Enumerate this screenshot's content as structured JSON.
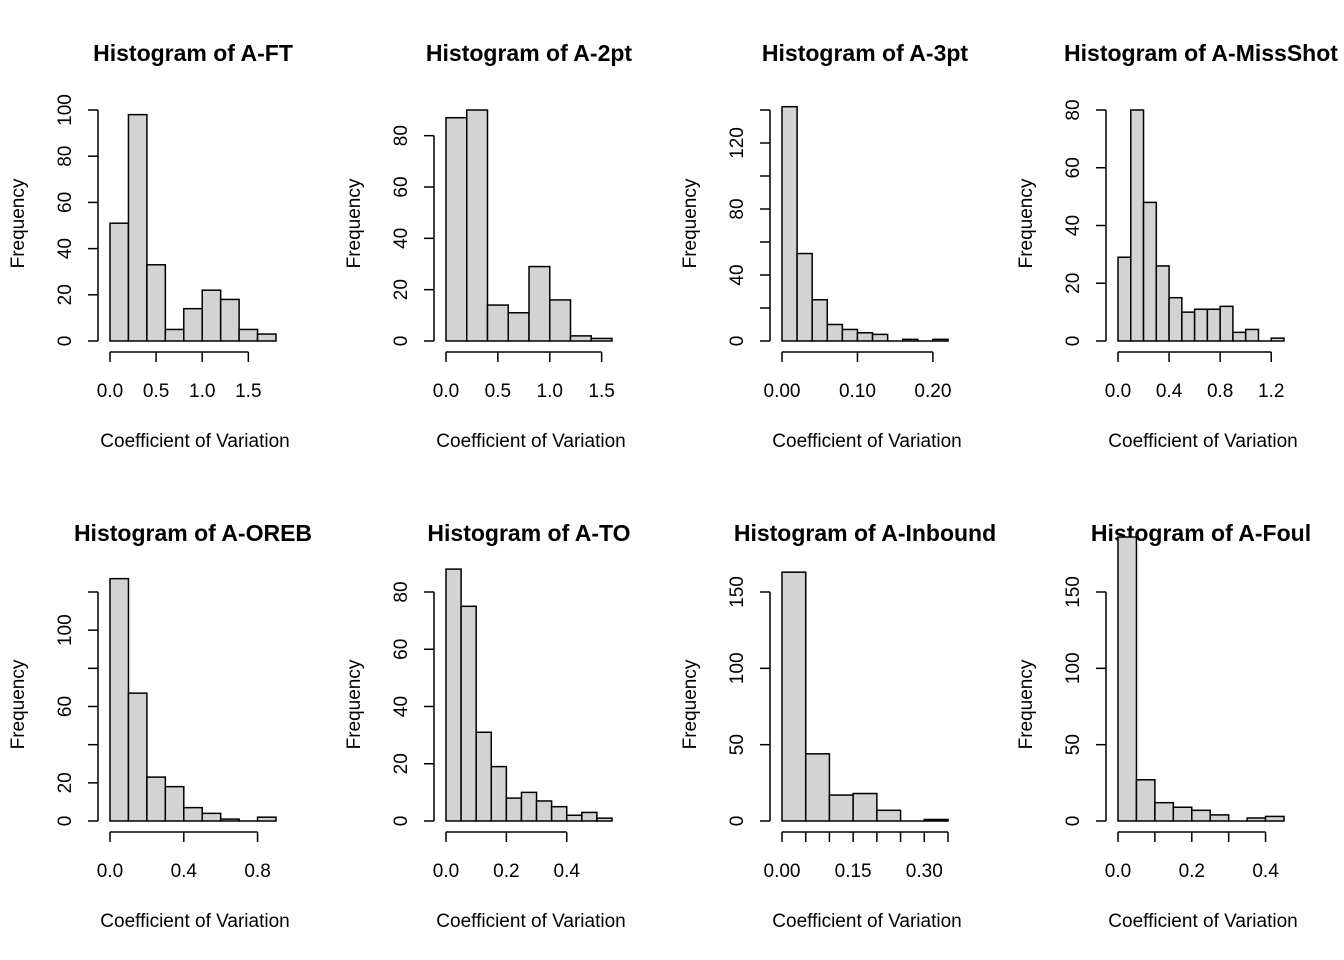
{
  "chart_data": [
    {
      "type": "bar",
      "title": "Histogram of A-FT",
      "xlabel": "Coefficient of Variation",
      "ylabel": "Frequency",
      "bin_edges": [
        0,
        0.2,
        0.4,
        0.6,
        0.8,
        1.0,
        1.2,
        1.4,
        1.6,
        1.8
      ],
      "values": [
        51,
        98,
        33,
        5,
        14,
        22,
        18,
        5,
        3
      ],
      "xlim": [
        0,
        1.8
      ],
      "ylim": [
        0,
        100
      ],
      "xticks": [
        0,
        0.5,
        1.0,
        1.5
      ],
      "xtick_labels": [
        "0.0",
        "0.5",
        "1.0",
        "1.5"
      ],
      "yticks": [
        0,
        20,
        40,
        60,
        80,
        100
      ],
      "ytick_labels": [
        "0",
        "20",
        "40",
        "60",
        "80",
        "100"
      ],
      "grid": false
    },
    {
      "type": "bar",
      "title": "Histogram of A-2pt",
      "xlabel": "Coefficient of Variation",
      "ylabel": "Frequency",
      "bin_edges": [
        0,
        0.2,
        0.4,
        0.6,
        0.8,
        1.0,
        1.2,
        1.4,
        1.6
      ],
      "values": [
        87,
        90,
        14,
        11,
        29,
        16,
        2,
        1
      ],
      "xlim": [
        0,
        1.6
      ],
      "ylim": [
        0,
        90
      ],
      "xticks": [
        0,
        0.5,
        1.0,
        1.5
      ],
      "xtick_labels": [
        "0.0",
        "0.5",
        "1.0",
        "1.5"
      ],
      "yticks": [
        0,
        20,
        40,
        60,
        80
      ],
      "ytick_labels": [
        "0",
        "20",
        "40",
        "60",
        "80"
      ],
      "grid": false
    },
    {
      "type": "bar",
      "title": "Histogram of A-3pt",
      "xlabel": "Coefficient of Variation",
      "ylabel": "Frequency",
      "bin_edges": [
        0,
        0.02,
        0.04,
        0.06,
        0.08,
        0.1,
        0.12,
        0.14,
        0.16,
        0.18,
        0.2,
        0.22
      ],
      "values": [
        142,
        53,
        25,
        10,
        7,
        5,
        4,
        0,
        1,
        0,
        1
      ],
      "xlim": [
        0,
        0.22
      ],
      "ylim": [
        0,
        140
      ],
      "xticks": [
        0,
        0.1,
        0.2
      ],
      "xtick_labels": [
        "0.00",
        "0.10",
        "0.20"
      ],
      "yticks": [
        0,
        40,
        80,
        120
      ],
      "ytick_labels": [
        "0",
        "40",
        "80",
        "120"
      ],
      "minor_yticks": [
        20,
        60,
        100,
        140
      ],
      "grid": false
    },
    {
      "type": "bar",
      "title": "Histogram of A-MissShot",
      "xlabel": "Coefficient of Variation",
      "ylabel": "Frequency",
      "bin_edges": [
        0,
        0.1,
        0.2,
        0.3,
        0.4,
        0.5,
        0.6,
        0.7,
        0.8,
        0.9,
        1.0,
        1.1,
        1.2,
        1.3
      ],
      "values": [
        29,
        80,
        48,
        26,
        15,
        10,
        11,
        11,
        12,
        3,
        4,
        0,
        1
      ],
      "xlim": [
        0,
        1.3
      ],
      "ylim": [
        0,
        80
      ],
      "xticks": [
        0,
        0.4,
        0.8,
        1.2
      ],
      "xtick_labels": [
        "0.0",
        "0.4",
        "0.8",
        "1.2"
      ],
      "yticks": [
        0,
        20,
        40,
        60,
        80
      ],
      "ytick_labels": [
        "0",
        "20",
        "40",
        "60",
        "80"
      ],
      "grid": false
    },
    {
      "type": "bar",
      "title": "Histogram of A-OREB",
      "xlabel": "Coefficient of Variation",
      "ylabel": "Frequency",
      "bin_edges": [
        0,
        0.1,
        0.2,
        0.3,
        0.4,
        0.5,
        0.6,
        0.7,
        0.8,
        0.9
      ],
      "values": [
        127,
        67,
        23,
        18,
        7,
        4,
        1,
        0,
        2
      ],
      "xlim": [
        0,
        0.9
      ],
      "ylim": [
        0,
        120
      ],
      "xticks": [
        0,
        0.4,
        0.8
      ],
      "xtick_labels": [
        "0.0",
        "0.4",
        "0.8"
      ],
      "yticks": [
        0,
        20,
        60,
        100
      ],
      "ytick_labels": [
        "0",
        "20",
        "60",
        "100"
      ],
      "minor_yticks": [
        40,
        80,
        120
      ],
      "grid": false
    },
    {
      "type": "bar",
      "title": "Histogram of A-TO",
      "xlabel": "Coefficient of Variation",
      "ylabel": "Frequency",
      "bin_edges": [
        0,
        0.05,
        0.1,
        0.15,
        0.2,
        0.25,
        0.3,
        0.35,
        0.4,
        0.45,
        0.5,
        0.55
      ],
      "values": [
        88,
        75,
        31,
        19,
        8,
        10,
        7,
        5,
        2,
        3,
        1
      ],
      "xlim": [
        0,
        0.55
      ],
      "ylim": [
        0,
        80
      ],
      "xticks": [
        0,
        0.2,
        0.4
      ],
      "xtick_labels": [
        "0.0",
        "0.2",
        "0.4"
      ],
      "yticks": [
        0,
        20,
        40,
        60,
        80
      ],
      "ytick_labels": [
        "0",
        "20",
        "40",
        "60",
        "80"
      ],
      "grid": false
    },
    {
      "type": "bar",
      "title": "Histogram of A-Inbound",
      "xlabel": "Coefficient of Variation",
      "ylabel": "Frequency",
      "bin_edges": [
        0,
        0.05,
        0.1,
        0.15,
        0.2,
        0.25,
        0.3,
        0.35
      ],
      "values": [
        163,
        44,
        17,
        18,
        7,
        0,
        1
      ],
      "xlim": [
        0,
        0.35
      ],
      "ylim": [
        0,
        150
      ],
      "xticks": [
        0,
        0.15,
        0.3
      ],
      "xtick_labels": [
        "0.00",
        "0.15",
        "0.30"
      ],
      "minor_xticks": [
        0.05,
        0.1,
        0.2,
        0.25,
        0.35
      ],
      "yticks": [
        0,
        50,
        100,
        150
      ],
      "ytick_labels": [
        "0",
        "50",
        "100",
        "150"
      ],
      "grid": false
    },
    {
      "type": "bar",
      "title": "Histogram of A-Foul",
      "xlabel": "Coefficient of Variation",
      "ylabel": "Frequency",
      "bin_edges": [
        0,
        0.05,
        0.1,
        0.15,
        0.2,
        0.25,
        0.3,
        0.35,
        0.4,
        0.45
      ],
      "values": [
        186,
        27,
        12,
        9,
        7,
        4,
        0,
        2,
        3
      ],
      "xlim": [
        0,
        0.45
      ],
      "ylim": [
        0,
        150
      ],
      "xticks": [
        0,
        0.2,
        0.4
      ],
      "xtick_labels": [
        "0.0",
        "0.2",
        "0.4"
      ],
      "minor_xticks": [
        0.1,
        0.3
      ],
      "yticks": [
        0,
        50,
        100,
        150
      ],
      "ytick_labels": [
        "0",
        "50",
        "100",
        "150"
      ],
      "grid": false
    }
  ],
  "colors": {
    "bar_fill": "#d3d3d3",
    "stroke": "#000000",
    "background": "#ffffff"
  }
}
